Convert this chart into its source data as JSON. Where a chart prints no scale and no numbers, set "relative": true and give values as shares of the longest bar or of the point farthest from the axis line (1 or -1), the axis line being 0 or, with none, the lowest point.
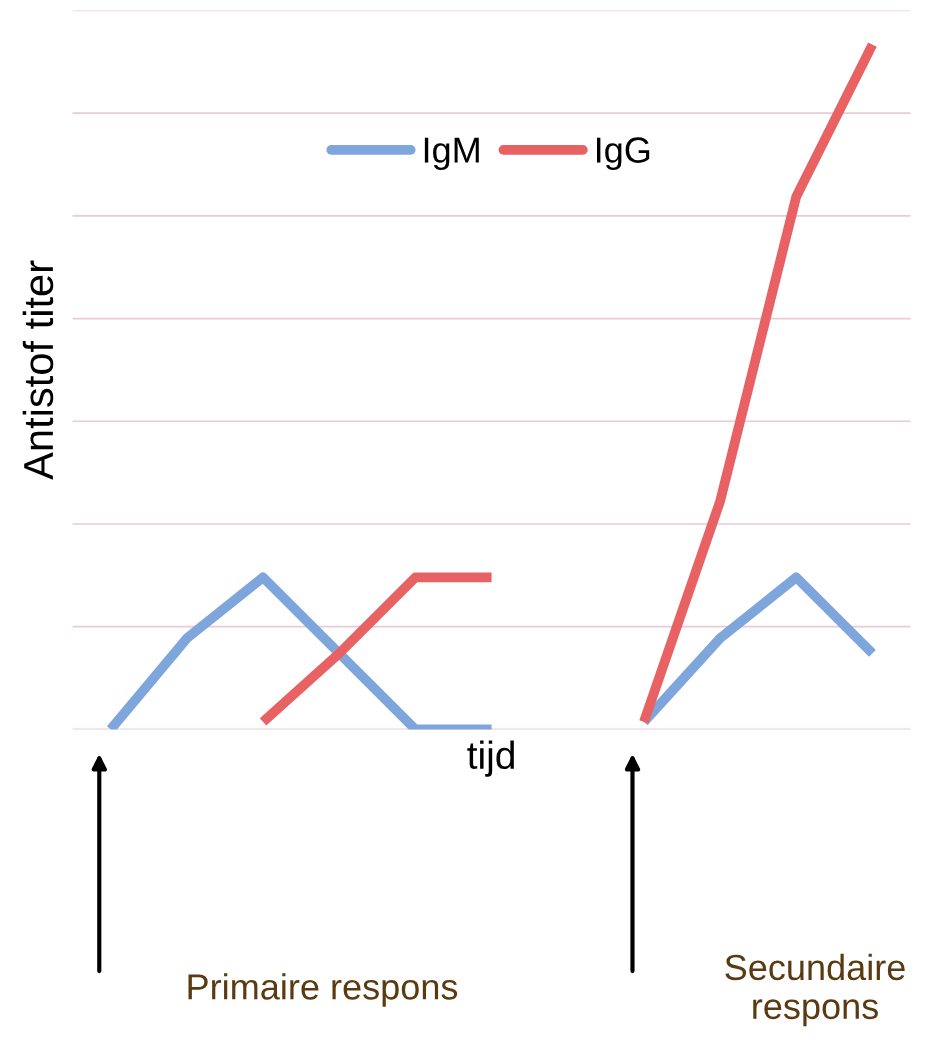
{
  "chart_data": {
    "type": "line",
    "relative": true,
    "xlabel": "tijd",
    "ylabel": "Antistof titer",
    "categories": [
      null,
      null,
      null,
      null,
      null,
      null,
      null,
      null,
      null,
      null,
      null
    ],
    "series": [
      {
        "name": "IgM",
        "color": "#7fa6dc",
        "values": [
          0,
          0.133,
          0.222,
          0.111,
          0,
          0,
          null,
          null,
          null,
          null,
          null
        ]
      },
      {
        "name": "IgG",
        "color": "#e86264",
        "values": [
          null,
          null,
          0.011,
          0.111,
          0.222,
          0.222,
          null,
          null,
          null,
          null,
          null
        ]
      },
      {
        "color": "#7fa6dc",
        "values": [
          null,
          null,
          null,
          null,
          null,
          null,
          null,
          0.011,
          0.133,
          0.222,
          0.111
        ]
      },
      {
        "color": "#e86264",
        "values": [
          null,
          null,
          null,
          null,
          null,
          null,
          null,
          0.011,
          0.333,
          0.778,
          1
        ]
      }
    ],
    "annotations": [
      "Primaire respons",
      "Secundaire respons"
    ],
    "grid": "y",
    "legend": "top",
    "tick_labels": false,
    "marker": "none",
    "line_style": "solid"
  }
}
